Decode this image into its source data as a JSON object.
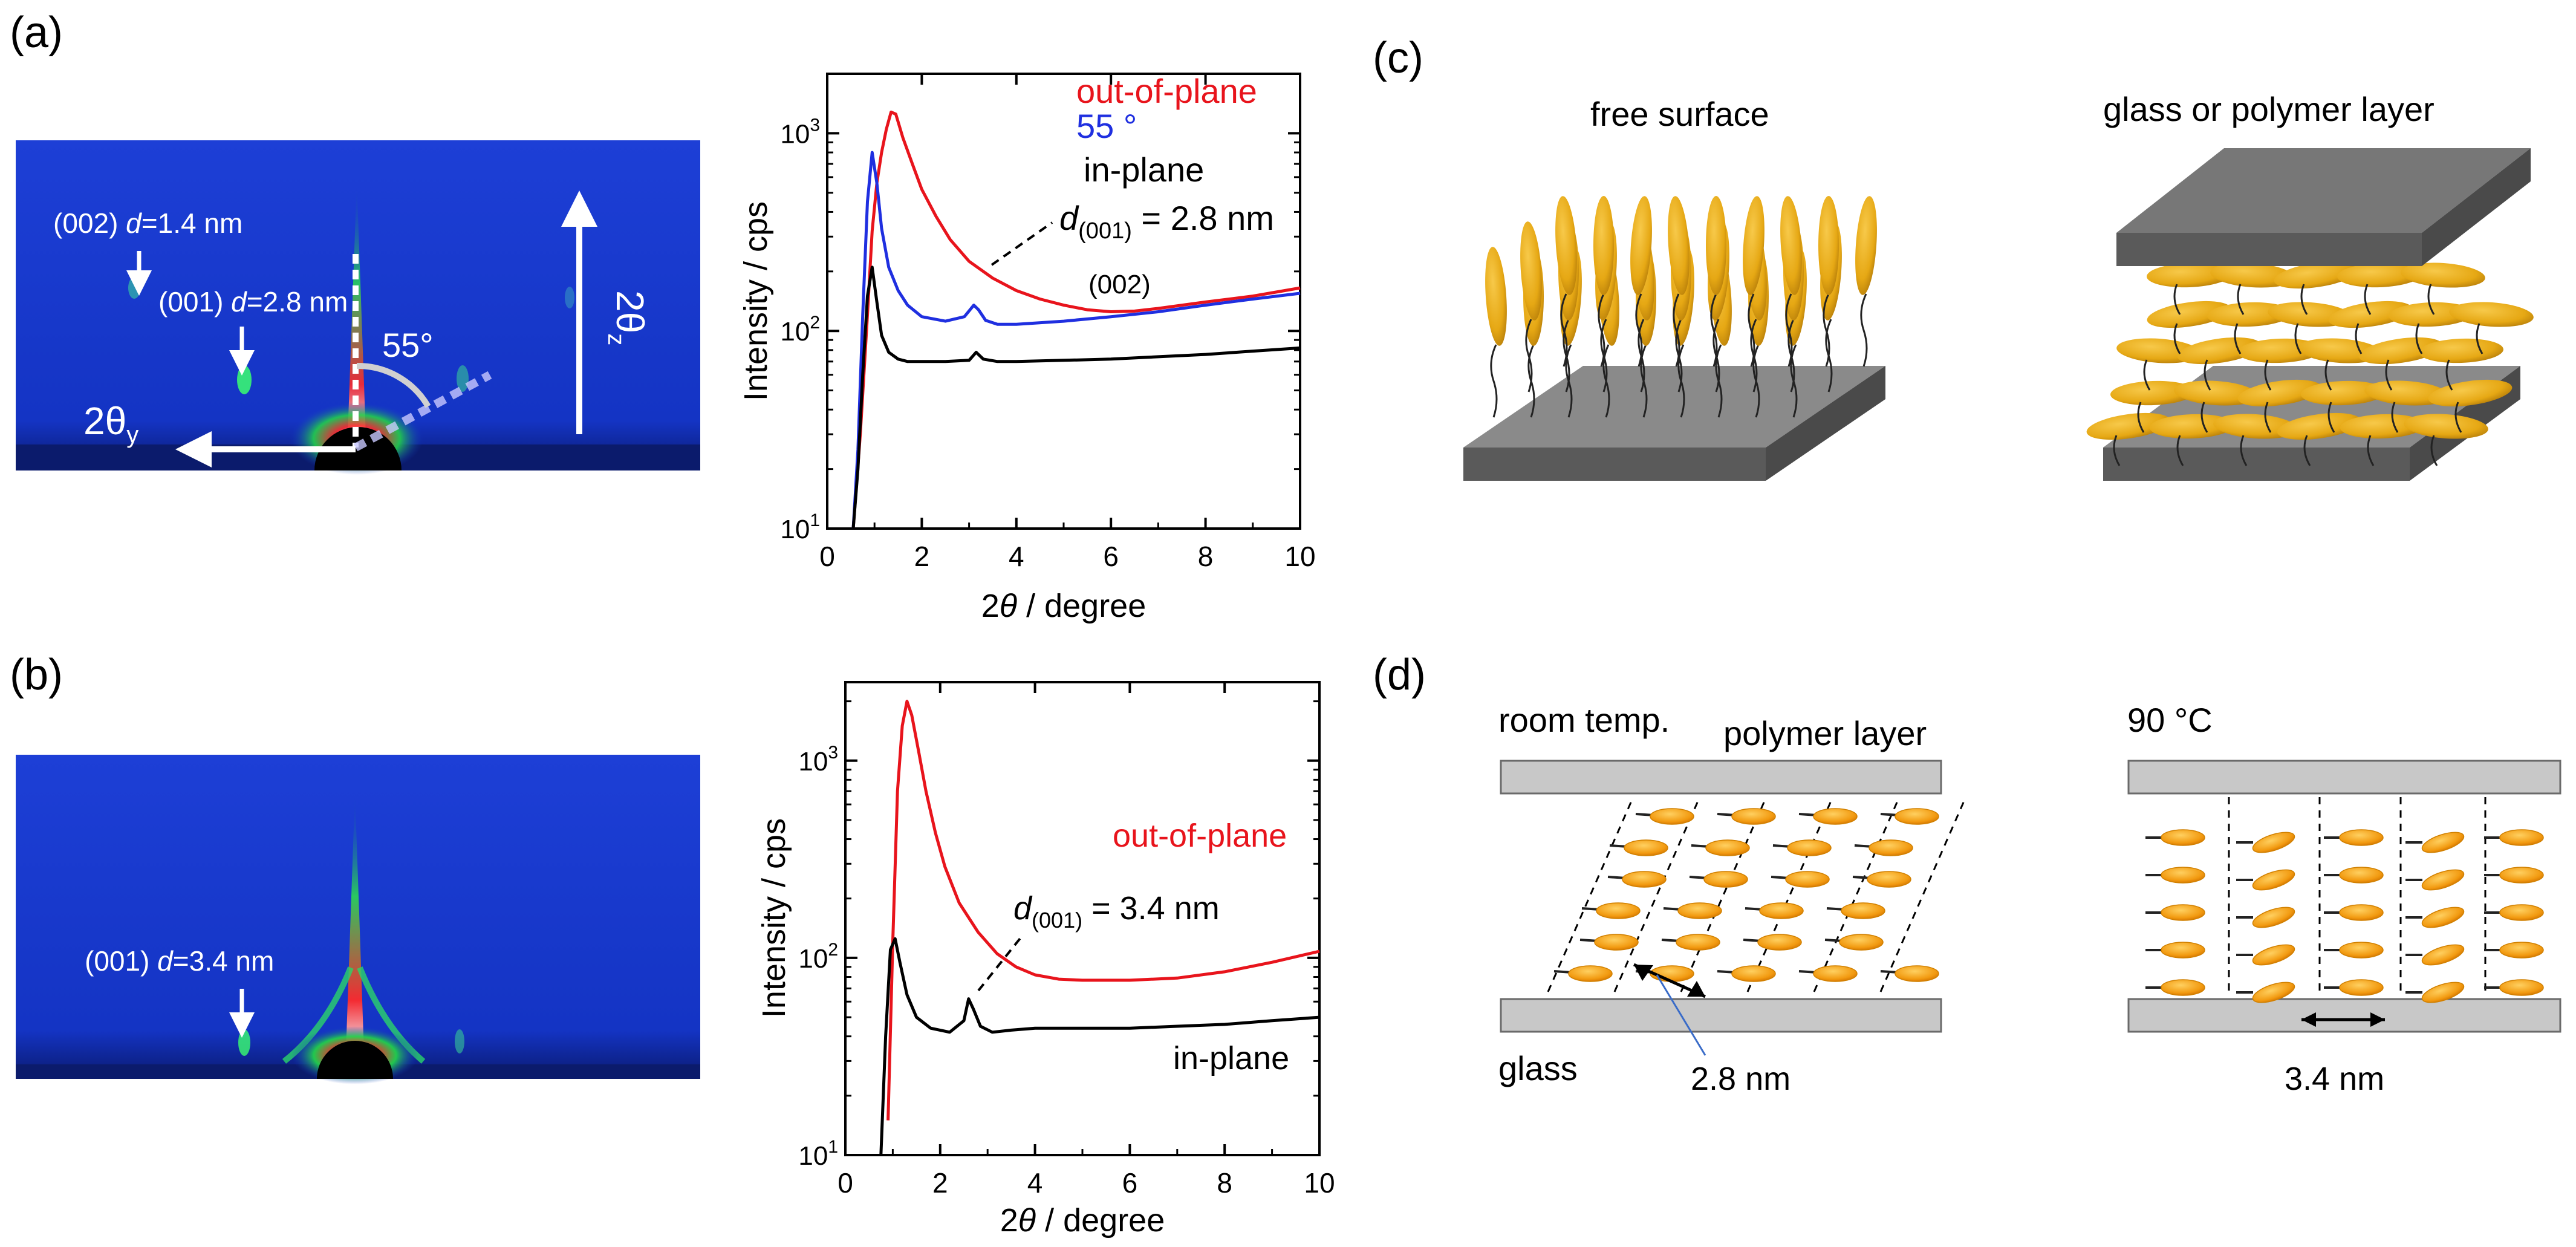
{
  "panels": {
    "a": "(a)",
    "b": "(b)",
    "c": "(c)",
    "d": "(d)"
  },
  "colors": {
    "out_of_plane": "#e8141c",
    "deg55": "#1f2fe0",
    "in_plane": "#000000",
    "detector_bg": "#1536c8",
    "molecule": "#e6a814",
    "plate": "#7a7a7a",
    "flat_plate": "#c8c8c8"
  },
  "gisaxs_a": {
    "peak002_prefix": "(002) ",
    "peak002_d": "d",
    "peak002_value": "=1.4 nm",
    "peak001_prefix": "(001) ",
    "peak001_d": "d",
    "peak001_value": "=2.8 nm",
    "angle_label": "55°",
    "axis_y_label": "2θ",
    "axis_y_sub": "y",
    "axis_z_label": "2θ",
    "axis_z_sub": "z"
  },
  "gisaxs_b": {
    "peak001_prefix": "(001) ",
    "peak001_d": "d",
    "peak001_value": "=3.4 nm"
  },
  "chart_data": [
    {
      "type": "line",
      "panel": "a",
      "xlabel_prefix": "2",
      "xlabel_theta": "θ",
      "xlabel_suffix": " / degree",
      "ylabel": "Intensity / cps",
      "xlim": [
        0,
        10
      ],
      "ylim": [
        10,
        2000
      ],
      "yscale": "log",
      "x_ticks": [
        "0",
        "2",
        "4",
        "6",
        "8",
        "10"
      ],
      "y_ticks": [
        {
          "base": "10",
          "exp": "1"
        },
        {
          "base": "10",
          "exp": "2"
        },
        {
          "base": "10",
          "exp": "3"
        }
      ],
      "legend": [
        "out-of-plane",
        "55 °",
        "in-plane"
      ],
      "annotation": {
        "d": "d",
        "sub": "(001)",
        "value": " = 2.8 nm"
      },
      "annotation2": "(002)",
      "series": [
        {
          "name": "out-of-plane",
          "x": [
            0.55,
            0.7,
            0.85,
            0.95,
            1.05,
            1.15,
            1.25,
            1.35,
            1.45,
            1.6,
            1.8,
            2.0,
            2.3,
            2.6,
            3.0,
            3.5,
            4.0,
            4.5,
            5.0,
            5.5,
            6.0,
            6.5,
            7.0,
            8.0,
            9.0,
            10.0
          ],
          "values": [
            10,
            30,
            120,
            320,
            560,
            800,
            1050,
            1280,
            1250,
            950,
            700,
            520,
            380,
            290,
            225,
            185,
            160,
            145,
            135,
            128,
            125,
            126,
            130,
            140,
            150,
            165
          ]
        },
        {
          "name": "55 °",
          "x": [
            0.55,
            0.65,
            0.75,
            0.85,
            0.95,
            1.05,
            1.15,
            1.3,
            1.5,
            1.7,
            2.0,
            2.5,
            2.9,
            3.1,
            3.2,
            3.35,
            3.6,
            4.0,
            5.0,
            6.0,
            7.0,
            8.0,
            9.0,
            10.0
          ],
          "values": [
            10,
            25,
            120,
            450,
            800,
            560,
            330,
            210,
            160,
            135,
            118,
            112,
            118,
            135,
            128,
            113,
            108,
            108,
            112,
            118,
            125,
            135,
            145,
            155
          ]
        },
        {
          "name": "in-plane",
          "x": [
            0.55,
            0.65,
            0.75,
            0.85,
            0.95,
            1.05,
            1.15,
            1.3,
            1.5,
            1.7,
            2.0,
            2.5,
            3.0,
            3.15,
            3.3,
            3.6,
            4.0,
            5.0,
            6.0,
            7.0,
            8.0,
            9.0,
            10.0
          ],
          "values": [
            10,
            20,
            60,
            150,
            210,
            140,
            95,
            78,
            72,
            70,
            70,
            70,
            71,
            78,
            72,
            70,
            70,
            71,
            72,
            74,
            76,
            79,
            82
          ]
        }
      ]
    },
    {
      "type": "line",
      "panel": "b",
      "xlabel_prefix": "2",
      "xlabel_theta": "θ",
      "xlabel_suffix": " / degree",
      "ylabel": "Intensity / cps",
      "xlim": [
        0,
        10
      ],
      "ylim": [
        10,
        2500
      ],
      "yscale": "log",
      "x_ticks": [
        "0",
        "2",
        "4",
        "6",
        "8",
        "10"
      ],
      "y_ticks": [
        {
          "base": "10",
          "exp": "1"
        },
        {
          "base": "10",
          "exp": "2"
        },
        {
          "base": "10",
          "exp": "3"
        }
      ],
      "legend": [
        "out-of-plane",
        "in-plane"
      ],
      "annotation": {
        "d": "d",
        "sub": "(001)",
        "value": " = 3.4 nm"
      },
      "series": [
        {
          "name": "out-of-plane",
          "x": [
            0.9,
            1.0,
            1.1,
            1.2,
            1.3,
            1.4,
            1.55,
            1.7,
            1.9,
            2.1,
            2.4,
            2.8,
            3.2,
            3.6,
            4.0,
            4.5,
            5.0,
            6.0,
            7.0,
            8.0,
            9.0,
            10.0
          ],
          "values": [
            15,
            120,
            700,
            1500,
            2000,
            1700,
            1100,
            700,
            430,
            290,
            190,
            135,
            105,
            90,
            82,
            78,
            77,
            77,
            79,
            85,
            95,
            108
          ]
        },
        {
          "name": "in-plane",
          "x": [
            0.75,
            0.85,
            0.95,
            1.05,
            1.15,
            1.3,
            1.5,
            1.8,
            2.2,
            2.5,
            2.6,
            2.7,
            2.85,
            3.1,
            3.5,
            4.0,
            5.0,
            6.0,
            7.0,
            8.0,
            9.0,
            10.0
          ],
          "values": [
            10,
            40,
            110,
            125,
            95,
            65,
            50,
            44,
            42,
            48,
            62,
            55,
            45,
            42,
            43,
            44,
            44,
            44,
            45,
            46,
            48,
            50
          ]
        }
      ]
    }
  ],
  "schematic_c": {
    "left_label": "free surface",
    "right_label": "glass or polymer layer"
  },
  "schematic_d": {
    "room_temp": "room temp.",
    "polymer_layer": "polymer layer",
    "glass": "glass",
    "spacing_left": "2.8 nm",
    "temp_90": "90 °C",
    "spacing_right": "3.4 nm"
  }
}
